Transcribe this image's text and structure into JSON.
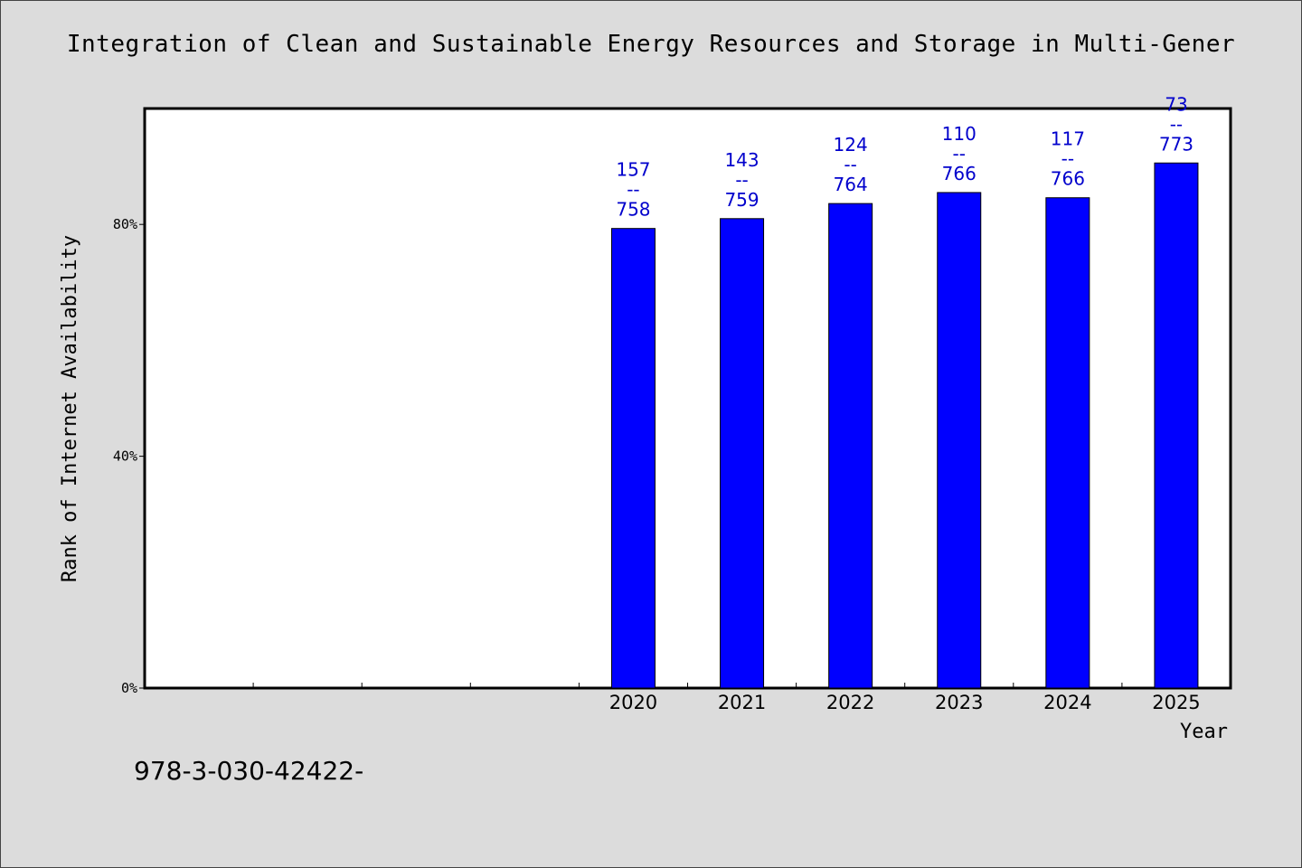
{
  "chart_data": {
    "type": "bar",
    "title": "Integration of Clean and Sustainable Energy Resources and Storage in Multi-Gener",
    "xlabel": "Year",
    "ylabel": "Rank of Internet Availability",
    "categories": [
      "",
      "",
      "",
      "",
      "2020",
      "2021",
      "2022",
      "2023",
      "2024",
      "2025"
    ],
    "values": [
      null,
      null,
      null,
      null,
      79.3,
      81.0,
      83.6,
      85.5,
      84.6,
      90.6
    ],
    "data_labels": [
      null,
      null,
      null,
      null,
      [
        "157",
        "--",
        "758"
      ],
      [
        "143",
        "--",
        "759"
      ],
      [
        "124",
        "--",
        "764"
      ],
      [
        "110",
        "--",
        "766"
      ],
      [
        "117",
        "--",
        "766"
      ],
      [
        "73",
        "--",
        "773"
      ]
    ],
    "ylim": [
      0,
      100
    ],
    "yticks": [
      0,
      40,
      80
    ],
    "ytick_labels": [
      "0%",
      "40%",
      "80%"
    ],
    "bar_color": "#0000ff",
    "label_color": "#0000cc",
    "grid": false
  },
  "footer": {
    "identifier": "978-3-030-42422-"
  }
}
